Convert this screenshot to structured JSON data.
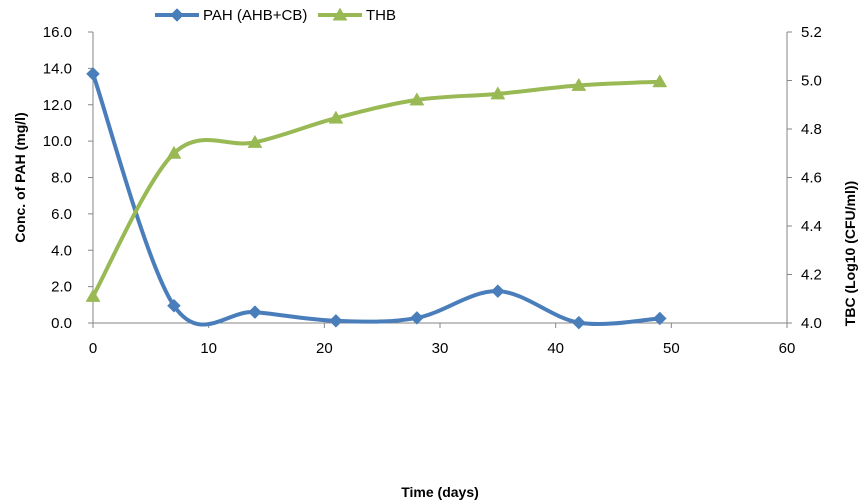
{
  "chart_data": {
    "type": "line",
    "title": "",
    "xlabel": "Time (days)",
    "ylabel_left": "Conc. of PAH (mg/l)",
    "ylabel_right": "TBC (Log10 (CFU/ml))",
    "xlim": [
      0,
      60
    ],
    "xticks": [
      "0",
      "10",
      "20",
      "30",
      "40",
      "50",
      "60"
    ],
    "ylim_left": [
      0,
      16
    ],
    "yticks_left": [
      "0.0",
      "2.0",
      "4.0",
      "6.0",
      "8.0",
      "10.0",
      "12.0",
      "14.0",
      "16.0"
    ],
    "ylim_right": [
      4.0,
      5.2
    ],
    "yticks_right": [
      "4.0",
      "4.2",
      "4.4",
      "4.6",
      "4.8",
      "5.0",
      "5.2"
    ],
    "grid": false,
    "legend_position": "top",
    "smooth_lines": true,
    "series": [
      {
        "name": "PAH (AHB+CB)",
        "axis": "left",
        "marker": "diamond",
        "color": "#4a7ebb",
        "x": [
          0,
          7,
          14,
          21,
          28,
          35,
          42,
          49
        ],
        "y": [
          13.7,
          0.95,
          0.6,
          0.12,
          0.28,
          1.75,
          0.02,
          0.25
        ]
      },
      {
        "name": "THB",
        "axis": "right",
        "marker": "triangle",
        "color": "#98b954",
        "x": [
          0,
          7,
          14,
          21,
          28,
          35,
          42,
          49
        ],
        "y": [
          4.11,
          4.7,
          4.745,
          4.845,
          4.92,
          4.945,
          4.98,
          4.995
        ]
      }
    ]
  }
}
